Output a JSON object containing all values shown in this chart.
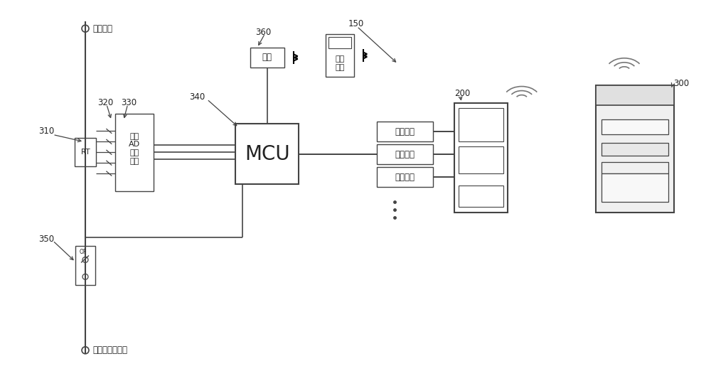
{
  "bg_color": "#ffffff",
  "line_color": "#444444",
  "box_color": "#ffffff",
  "box_edge": "#444444",
  "text_color": "#222222",
  "figsize": [
    10.0,
    5.29
  ],
  "dpi": 100,
  "labels": {
    "inlet_line": "入户干线",
    "home_circuit": "家庭供电主电路",
    "multi_ad": "多路\nAD\n转换\n模块",
    "mcu": "MCU",
    "bluetooth_box": "蓝牙",
    "carrier": "载波模块",
    "handheld_top": "手持",
    "handheld_bot": "终端",
    "rt": "RT",
    "num_310": "310",
    "num_320": "320",
    "num_330": "330",
    "num_340": "340",
    "num_350": "350",
    "num_360": "360",
    "num_150": "150",
    "num_200": "200",
    "num_300": "300"
  }
}
